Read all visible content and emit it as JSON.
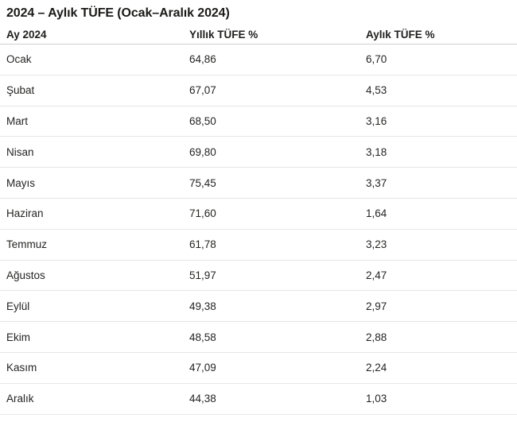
{
  "title": "2024 – Aylık TÜFE (Ocak–Aralık 2024)",
  "colors": {
    "background": "#ffffff",
    "title_text": "#1b1a19",
    "header_text": "#201f1e",
    "body_text": "#252423",
    "header_divider": "#d2d0ce",
    "row_divider": "#e8e6e4"
  },
  "table": {
    "columns": [
      "Ay 2024",
      "Yıllık TÜFE %",
      "Aylık TÜFE %"
    ],
    "rows": [
      {
        "month": "Ocak",
        "yillik": "64,86",
        "aylik": "6,70"
      },
      {
        "month": "Şubat",
        "yillik": "67,07",
        "aylik": "4,53"
      },
      {
        "month": "Mart",
        "yillik": "68,50",
        "aylik": "3,16"
      },
      {
        "month": "Nisan",
        "yillik": "69,80",
        "aylik": "3,18"
      },
      {
        "month": "Mayıs",
        "yillik": "75,45",
        "aylik": "3,37"
      },
      {
        "month": "Haziran",
        "yillik": "71,60",
        "aylik": "1,64"
      },
      {
        "month": "Temmuz",
        "yillik": "61,78",
        "aylik": "3,23"
      },
      {
        "month": "Ağustos",
        "yillik": "51,97",
        "aylik": "2,47"
      },
      {
        "month": "Eylül",
        "yillik": "49,38",
        "aylik": "2,97"
      },
      {
        "month": "Ekim",
        "yillik": "48,58",
        "aylik": "2,88"
      },
      {
        "month": "Kasım",
        "yillik": "47,09",
        "aylik": "2,24"
      },
      {
        "month": "Aralık",
        "yillik": "44,38",
        "aylik": "1,03"
      }
    ]
  },
  "chart_data": {
    "type": "table",
    "title": "2024 – Aylık TÜFE (Ocak–Aralık 2024)",
    "categories": [
      "Ocak",
      "Şubat",
      "Mart",
      "Nisan",
      "Mayıs",
      "Haziran",
      "Temmuz",
      "Ağustos",
      "Eylül",
      "Ekim",
      "Kasım",
      "Aralık"
    ],
    "series": [
      {
        "name": "Yıllık TÜFE %",
        "values": [
          64.86,
          67.07,
          68.5,
          69.8,
          75.45,
          71.6,
          61.78,
          51.97,
          49.38,
          48.58,
          47.09,
          44.38
        ]
      },
      {
        "name": "Aylık TÜFE %",
        "values": [
          6.7,
          4.53,
          3.16,
          3.18,
          3.37,
          1.64,
          3.23,
          2.47,
          2.97,
          2.88,
          2.24,
          1.03
        ]
      }
    ],
    "layout": {
      "grid": "horizontal-row-dividers",
      "legend": "none"
    }
  }
}
